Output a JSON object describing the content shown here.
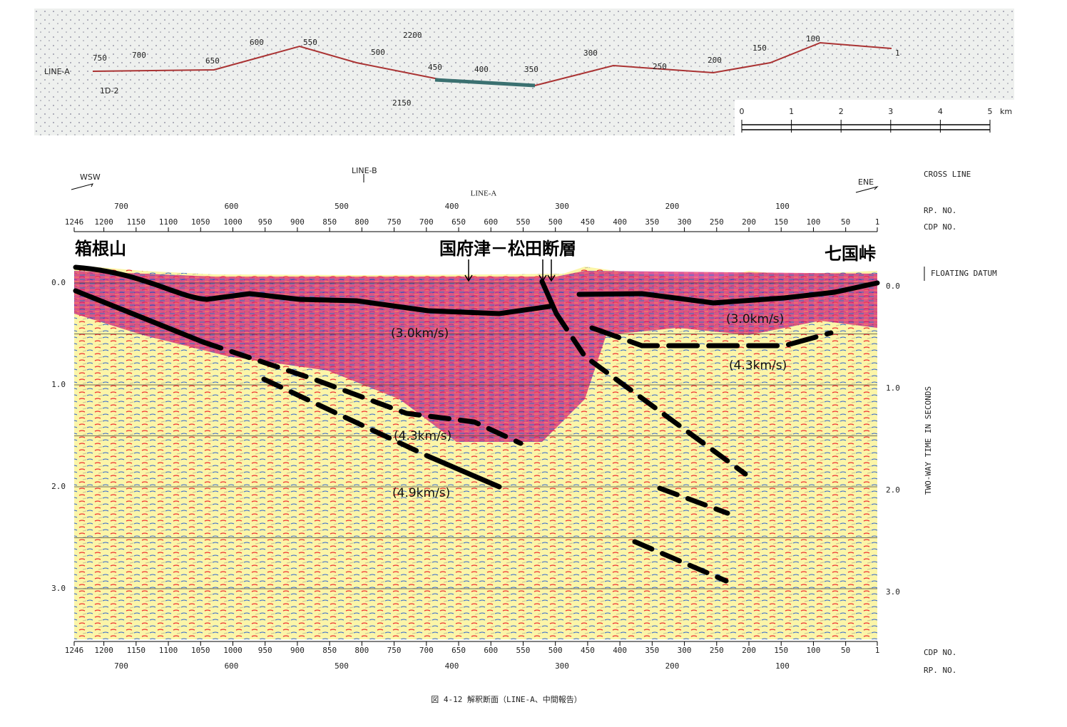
{
  "map": {
    "line_label": "LINE-A",
    "station_labels": [
      "750",
      "700",
      "650",
      "600",
      "550",
      "500",
      "450",
      "400",
      "350",
      "300",
      "250",
      "200",
      "150",
      "100",
      "1",
      "2200",
      "2150"
    ],
    "well_label": "1D-2",
    "scale_ticks": [
      "0",
      "1",
      "2",
      "3",
      "4",
      "5"
    ],
    "scale_unit": "km"
  },
  "section": {
    "title": "LINE-A",
    "direction_left": "WSW",
    "direction_right": "ENE",
    "line_b": "LINE-B",
    "cdp_ticks": [
      1246,
      1200,
      1150,
      1100,
      1050,
      1000,
      950,
      900,
      850,
      800,
      750,
      700,
      650,
      600,
      550,
      500,
      450,
      400,
      350,
      300,
      250,
      200,
      150,
      100,
      50,
      1
    ],
    "rp_ticks": [
      700,
      600,
      500,
      400,
      300,
      200,
      100
    ],
    "time_ticks": [
      "0.0",
      "1.0",
      "2.0",
      "3.0"
    ],
    "right_labels": {
      "cross_line": "CROSS LINE",
      "rp_no": "RP. NO.",
      "cdp_no": "CDP NO.",
      "floating_datum": "FLOATING DATUM",
      "time_axis": "TWO-WAY TIME IN SECONDS"
    },
    "place_left": "箱根山",
    "fault_name": "国府津－松田断層",
    "place_right": "七国峠",
    "velocity_labels": [
      "(3.0km/s)",
      "(3.0km/s)",
      "(4.3km/s)",
      "(4.3km/s)",
      "(4.9km/s)"
    ]
  },
  "caption": "図 4-12 解釈断面（LINE-A、中間報告）"
}
